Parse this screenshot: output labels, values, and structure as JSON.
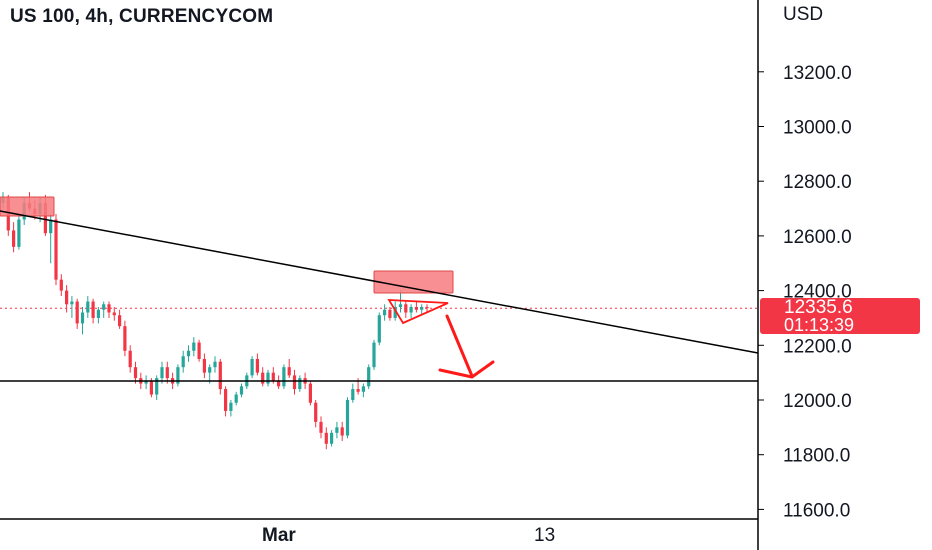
{
  "header": {
    "title": "US 100, 4h, CURRENCYCOM",
    "currency": "USD"
  },
  "price_badge": {
    "price": "12335.6",
    "countdown": "01:13:39"
  },
  "colors": {
    "up": "#26a69a",
    "down": "#f23645",
    "zone_fill": "#f77c80",
    "zone_stroke": "#e04848",
    "annotation": "#ff1a1a",
    "line": "#000000",
    "axis": "#000000",
    "price_line": "#f23645"
  },
  "chart_data": {
    "type": "candlestick",
    "symbol": "US 100",
    "interval": "4h",
    "source": "CURRENCYCOM",
    "y_axis": {
      "unit": "USD",
      "ticks": [
        11600,
        11800,
        12000,
        12200,
        12400,
        12600,
        12800,
        13000,
        13200
      ],
      "tick_labels": [
        "11600.0",
        "11800.0",
        "12000.0",
        "12200.0",
        "12400.0",
        "12600.0",
        "12800.0",
        "13000.0",
        "13200.0"
      ],
      "ylim": [
        11600,
        13380
      ]
    },
    "x_axis": {
      "tick_labels": [
        "Mar",
        "13"
      ]
    },
    "last_price": 12335.6,
    "candles": [
      [
        12720,
        12760,
        12700,
        12740
      ],
      [
        12740,
        12750,
        12600,
        12620
      ],
      [
        12620,
        12650,
        12540,
        12560
      ],
      [
        12560,
        12680,
        12550,
        12660
      ],
      [
        12660,
        12740,
        12640,
        12720
      ],
      [
        12720,
        12760,
        12690,
        12700
      ],
      [
        12700,
        12730,
        12660,
        12680
      ],
      [
        12680,
        12740,
        12650,
        12720
      ],
      [
        12720,
        12750,
        12600,
        12610
      ],
      [
        12610,
        12680,
        12500,
        12660
      ],
      [
        12660,
        12680,
        12420,
        12440
      ],
      [
        12440,
        12460,
        12380,
        12400
      ],
      [
        12400,
        12420,
        12320,
        12350
      ],
      [
        12350,
        12380,
        12300,
        12360
      ],
      [
        12360,
        12370,
        12260,
        12280
      ],
      [
        12280,
        12340,
        12240,
        12320
      ],
      [
        12320,
        12380,
        12300,
        12360
      ],
      [
        12360,
        12370,
        12280,
        12300
      ],
      [
        12300,
        12340,
        12280,
        12330
      ],
      [
        12330,
        12360,
        12300,
        12350
      ],
      [
        12350,
        12360,
        12300,
        12320
      ],
      [
        12320,
        12340,
        12290,
        12310
      ],
      [
        12310,
        12330,
        12260,
        12270
      ],
      [
        12270,
        12290,
        12160,
        12180
      ],
      [
        12180,
        12200,
        12100,
        12120
      ],
      [
        12120,
        12140,
        12060,
        12080
      ],
      [
        12080,
        12100,
        12040,
        12060
      ],
      [
        12060,
        12090,
        12040,
        12070
      ],
      [
        12070,
        12080,
        12010,
        12020
      ],
      [
        12020,
        12090,
        12000,
        12080
      ],
      [
        12080,
        12140,
        12060,
        12120
      ],
      [
        12120,
        12140,
        12060,
        12080
      ],
      [
        12080,
        12100,
        12040,
        12060
      ],
      [
        12060,
        12130,
        12050,
        12120
      ],
      [
        12120,
        12180,
        12100,
        12160
      ],
      [
        12160,
        12200,
        12140,
        12180
      ],
      [
        12180,
        12230,
        12160,
        12210
      ],
      [
        12210,
        12220,
        12140,
        12150
      ],
      [
        12150,
        12170,
        12080,
        12100
      ],
      [
        12100,
        12130,
        12060,
        12120
      ],
      [
        12120,
        12160,
        12100,
        12140
      ],
      [
        12140,
        12150,
        12020,
        12040
      ],
      [
        12040,
        12050,
        11940,
        11960
      ],
      [
        11960,
        12000,
        11940,
        11990
      ],
      [
        11990,
        12030,
        11980,
        12020
      ],
      [
        12020,
        12060,
        12010,
        12050
      ],
      [
        12050,
        12100,
        12040,
        12090
      ],
      [
        12090,
        12160,
        12080,
        12150
      ],
      [
        12150,
        12170,
        12090,
        12100
      ],
      [
        12100,
        12120,
        12050,
        12060
      ],
      [
        12060,
        12110,
        12050,
        12100
      ],
      [
        12100,
        12120,
        12060,
        12070
      ],
      [
        12070,
        12090,
        12040,
        12050
      ],
      [
        12050,
        12130,
        12040,
        12120
      ],
      [
        12120,
        12150,
        12080,
        12090
      ],
      [
        12090,
        12110,
        12020,
        12040
      ],
      [
        12040,
        12090,
        12030,
        12080
      ],
      [
        12080,
        12100,
        12040,
        12060
      ],
      [
        12060,
        12070,
        11980,
        11990
      ],
      [
        11990,
        12000,
        11900,
        11920
      ],
      [
        11920,
        11940,
        11860,
        11880
      ],
      [
        11880,
        11900,
        11820,
        11840
      ],
      [
        11840,
        11890,
        11830,
        11880
      ],
      [
        11880,
        11920,
        11860,
        11900
      ],
      [
        11900,
        11920,
        11850,
        11870
      ],
      [
        11870,
        12010,
        11860,
        12000
      ],
      [
        12000,
        12060,
        11990,
        12040
      ],
      [
        12040,
        12080,
        12020,
        12030
      ],
      [
        12030,
        12060,
        12010,
        12050
      ],
      [
        12050,
        12130,
        12040,
        12120
      ],
      [
        12120,
        12220,
        12110,
        12210
      ],
      [
        12210,
        12320,
        12200,
        12310
      ],
      [
        12310,
        12350,
        12290,
        12330
      ],
      [
        12330,
        12340,
        12290,
        12300
      ],
      [
        12300,
        12360,
        12290,
        12340
      ],
      [
        12340,
        12400,
        12320,
        12350
      ],
      [
        12350,
        12360,
        12300,
        12320
      ],
      [
        12320,
        12350,
        12300,
        12340
      ],
      [
        12340,
        12360,
        12320,
        12330
      ],
      [
        12330,
        12350,
        12310,
        12340
      ],
      [
        12340,
        12350,
        12320,
        12336
      ]
    ]
  }
}
